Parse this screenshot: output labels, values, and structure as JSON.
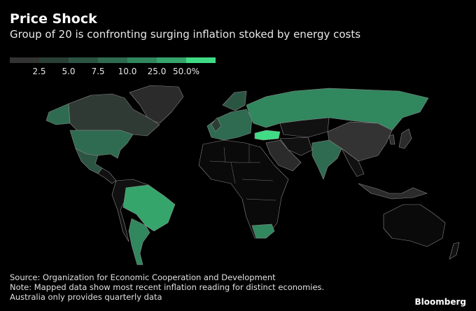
{
  "header": {
    "title": "Price Shock",
    "subtitle": "Group of 20 is confronting surging inflation stoked by energy costs"
  },
  "legend": {
    "colors": [
      "#333333",
      "#2a3f36",
      "#2c5443",
      "#2e6b50",
      "#31875e",
      "#36a56c",
      "#3fdc85"
    ],
    "ticks": [
      2.5,
      {
        "value": 5,
        "label": "5.0"
      },
      7.5,
      {
        "value": 10,
        "label": "10.0"
      },
      {
        "value": 25,
        "label": "25.0"
      },
      {
        "value": 50,
        "label": "50.0%"
      }
    ]
  },
  "footer": {
    "source": "Source: Organization for Economic Cooperation and Development",
    "note": "Note: Mapped data show most recent inflation reading for distinct economies.",
    "note2": "Australia only provides quarterly data",
    "brand": "Bloomberg"
  }
}
